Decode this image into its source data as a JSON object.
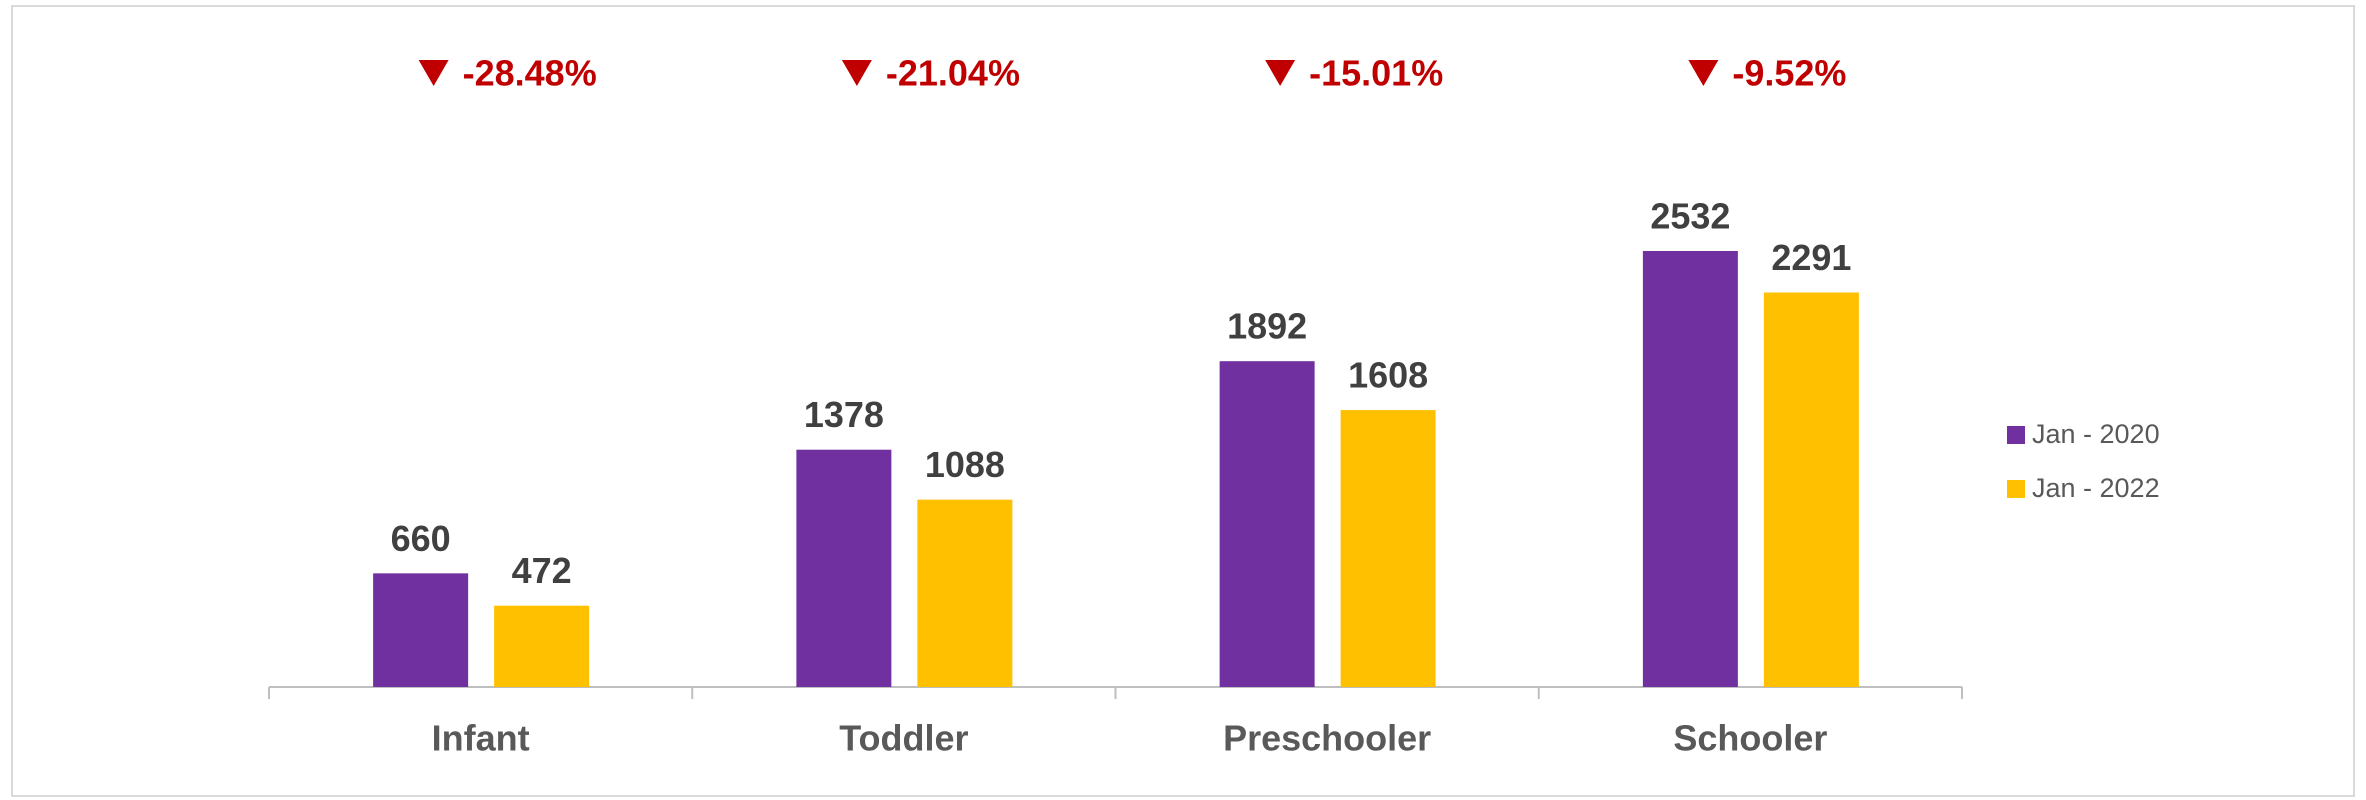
{
  "chart_data": {
    "type": "bar",
    "categories": [
      "Infant",
      "Toddler",
      "Preschooler",
      "Schooler"
    ],
    "series": [
      {
        "name": "Jan - 2020",
        "color": "#7030a0",
        "values": [
          660,
          1378,
          1892,
          2532
        ]
      },
      {
        "name": "Jan - 2022",
        "color": "#ffc000",
        "values": [
          472,
          1088,
          1608,
          2291
        ]
      }
    ],
    "annotations": [
      "-28.48%",
      "-21.04%",
      "-15.01%",
      "-9.52%"
    ],
    "annotation_color": "#c00000",
    "legend": "right"
  }
}
